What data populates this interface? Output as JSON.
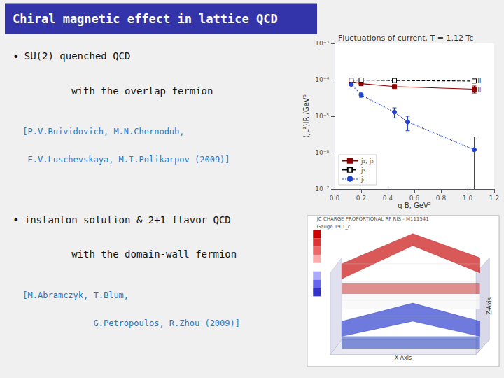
{
  "chart_data": {
    "type": "line",
    "title": "Fluctuations of current, T = 1.12 Tc",
    "xlabel": "q B, GeV²",
    "ylabel": "⟨jL²⟩IR /GeV⁶",
    "xlim": [
      0,
      1.2
    ],
    "xticks": [
      {
        "value": 0,
        "label": "0.0"
      },
      0.2,
      0.4,
      0.6,
      0.8,
      {
        "value": 1,
        "label": "1.0"
      },
      1.2
    ],
    "ylim": [
      1e-07,
      0.001
    ],
    "yticks": [
      {
        "value": 1e-07,
        "label": "10⁻⁷"
      },
      {
        "value": 1e-06,
        "label": "10⁻⁶"
      },
      {
        "value": 1e-05,
        "label": "10⁻⁵"
      },
      {
        "value": 0.0001,
        "label": "10⁻⁴"
      },
      {
        "value": 0.001,
        "label": "10⁻³"
      }
    ],
    "log": "y",
    "grid": false,
    "legend": "lower left",
    "series": [
      {
        "name": "j₁, j₂",
        "color": "#8b0000",
        "marker": "square",
        "line_style": "solid",
        "x": [
          0.125,
          0.2,
          0.45,
          1.05
        ],
        "values": [
          9e-05,
          7.8e-05,
          6.5e-05,
          5.5e-05
        ],
        "yerr": [
          2e-06,
          3e-06,
          3e-06,
          1.2e-05
        ]
      },
      {
        "name": "j₃",
        "color": "#000000",
        "marker": "square-open",
        "line_style": "dashed",
        "x": [
          0.125,
          0.2,
          0.45,
          1.05
        ],
        "values": [
          9.7e-05,
          9.8e-05,
          9.5e-05,
          9.2e-05
        ],
        "yerr": [
          2e-06,
          2e-06,
          2e-06,
          3e-06
        ]
      },
      {
        "name": "j₀",
        "color": "#2244cc",
        "marker": "circle",
        "line_style": "dotted",
        "x": [
          0.125,
          0.2,
          0.45,
          0.55,
          1.05
        ],
        "values": [
          7.5e-05,
          3.8e-05,
          1.3e-05,
          7e-06,
          1.2e-06
        ],
        "yerr": [
          7e-06,
          5e-06,
          4e-06,
          3e-06,
          1.5e-06
        ]
      }
    ],
    "annotations": [
      {
        "text": "III",
        "x": 1.05,
        "y": 9.2e-05,
        "color": "#000000"
      },
      {
        "text": "III",
        "x": 1.05,
        "y": 5.5e-05,
        "color": "#8b0000"
      },
      {
        "text": "Chiral magnetic effect in lattice QCD",
        "color": "#ffffff"
      },
      {
        "text": "•",
        "color": "#111111"
      },
      {
        "text": "  SU(2) quenched QCD",
        "color": "#111111"
      },
      {
        "text": "          with the overlap fermion",
        "color": "#111111"
      },
      {
        "text": "  [P.V.Buividovich, M.N.Chernodub,",
        "color": "#1a7acc"
      },
      {
        "text": "   E.V.Luschevskaya, M.I.Polikarpov (2009)]",
        "color": "#1a7acc"
      },
      {
        "text": "•",
        "color": "#111111"
      },
      {
        "text": "  instanton solution & 2+1 flavor QCD",
        "color": "#111111"
      },
      {
        "text": "          with the domain-wall fermion",
        "color": "#111111"
      },
      {
        "text": "  [M.Abramczyk, T.Blum,",
        "color": "#1a7acc"
      },
      {
        "text": "                G.Petropoulos, R.Zhou (2009)]",
        "color": "#1a7acc"
      },
      {
        "text": "JC CHARGE PROPORTIONAL RF RIS - M111541",
        "color": "#555555"
      },
      {
        "text": "Gauge 19 T_c",
        "color": "#555555"
      },
      {
        "text": "X-Axis",
        "color": "#333333"
      },
      {
        "text": "Z-Axis",
        "color": "#333333"
      }
    ]
  }
}
